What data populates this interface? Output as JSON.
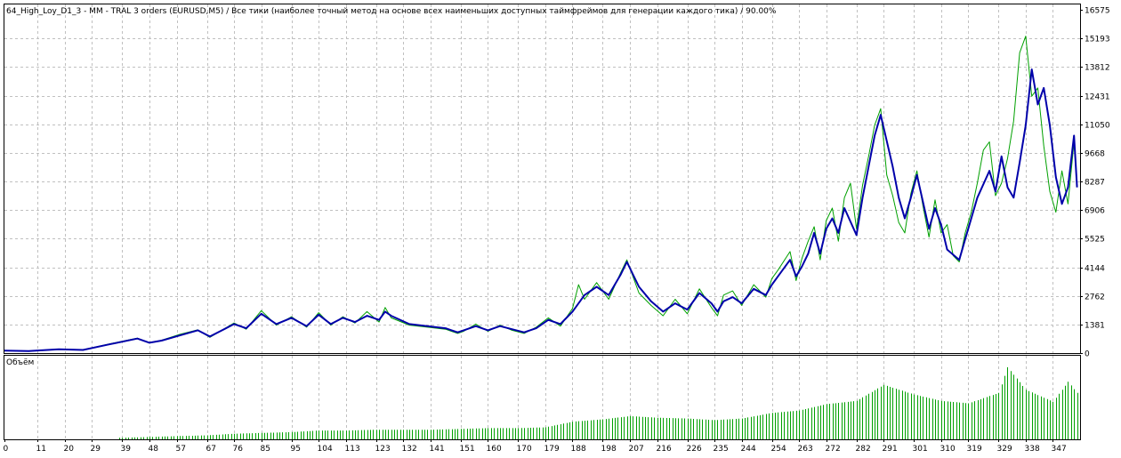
{
  "chart_data": {
    "type": "line",
    "title": "64_High_Loy_D1_3 - MM - TRAL 3 orders (EURUSD,M5) / Все тики (наиболее точный метод на основе всех наименьших доступных таймфреймов для генерации каждого тика) / 90.00%",
    "volume_label": "Объём",
    "ylim": [
      0,
      16575
    ],
    "y_ticks": [
      "16575",
      "15193",
      "13812",
      "12431",
      "11050",
      "9668",
      "8287",
      "6906",
      "5525",
      "4144",
      "2762",
      "1381",
      "0"
    ],
    "x_ticks": [
      "0",
      "11",
      "20",
      "29",
      "39",
      "48",
      "57",
      "67",
      "76",
      "85",
      "95",
      "104",
      "113",
      "123",
      "132",
      "141",
      "151",
      "160",
      "170",
      "179",
      "188",
      "198",
      "207",
      "216",
      "226",
      "235",
      "244",
      "254",
      "263",
      "272",
      "282",
      "291",
      "301",
      "310",
      "319",
      "329",
      "338",
      "347"
    ],
    "xlim": [
      0,
      356
    ],
    "colors": {
      "balance": "#0000aa",
      "equity": "#00a000",
      "volume": "#00a000",
      "grid": "#c0c0c0",
      "frame": "#000000"
    },
    "series": [
      {
        "name": "",
        "x": [
          0,
          8,
          18,
          26,
          34,
          44,
          48,
          52,
          58,
          64,
          68,
          76,
          80,
          85,
          90,
          95,
          100,
          104,
          108,
          112,
          116,
          120,
          124,
          126,
          128,
          134,
          140,
          146,
          150,
          152,
          156,
          160,
          164,
          168,
          172,
          176,
          180,
          184,
          188,
          192,
          196,
          200,
          204,
          206,
          210,
          214,
          218,
          222,
          226,
          230,
          234,
          236,
          238,
          241,
          244,
          248,
          252,
          254,
          256,
          260,
          262,
          264,
          266,
          268,
          270,
          272,
          274,
          276,
          278,
          282,
          284,
          286,
          288,
          290,
          294,
          296,
          298,
          300,
          302,
          306,
          308,
          310,
          312,
          316,
          318,
          320,
          322,
          326,
          328,
          330,
          332,
          334,
          336,
          338,
          340,
          342,
          344,
          346,
          348,
          350,
          352,
          354,
          355
        ],
        "values": [
          120,
          100,
          180,
          150,
          400,
          700,
          500,
          600,
          850,
          1100,
          800,
          1400,
          1200,
          1900,
          1400,
          1700,
          1300,
          1850,
          1400,
          1700,
          1500,
          1800,
          1600,
          2000,
          1800,
          1400,
          1300,
          1200,
          1000,
          1100,
          1300,
          1100,
          1300,
          1150,
          1000,
          1200,
          1600,
          1400,
          2000,
          2800,
          3200,
          2800,
          3800,
          4400,
          3200,
          2500,
          2000,
          2400,
          2100,
          2900,
          2400,
          2000,
          2500,
          2700,
          2400,
          3100,
          2800,
          3300,
          3700,
          4500,
          3700,
          4200,
          4800,
          5800,
          4800,
          6000,
          6500,
          5800,
          7000,
          5700,
          7500,
          9000,
          10500,
          11500,
          9000,
          7500,
          6500,
          7500,
          8600,
          6000,
          7000,
          6200,
          5000,
          4500,
          5500,
          6500,
          7500,
          8800,
          7800,
          9500,
          8000,
          7500,
          9200,
          11000,
          13700,
          12000,
          12800,
          11000,
          8500,
          7200,
          8000,
          10500,
          8000
        ]
      },
      {
        "name": "",
        "x": [
          0,
          8,
          18,
          26,
          34,
          44,
          48,
          52,
          58,
          64,
          68,
          76,
          80,
          85,
          90,
          95,
          100,
          104,
          108,
          112,
          116,
          120,
          124,
          126,
          128,
          134,
          140,
          146,
          150,
          152,
          156,
          160,
          164,
          168,
          172,
          176,
          180,
          184,
          188,
          190,
          192,
          196,
          200,
          204,
          206,
          210,
          214,
          218,
          222,
          226,
          230,
          234,
          236,
          238,
          241,
          244,
          248,
          252,
          254,
          256,
          260,
          262,
          264,
          266,
          268,
          270,
          272,
          274,
          276,
          278,
          280,
          282,
          284,
          286,
          288,
          290,
          292,
          294,
          296,
          298,
          300,
          302,
          304,
          306,
          308,
          310,
          312,
          314,
          316,
          318,
          320,
          322,
          324,
          326,
          328,
          330,
          332,
          334,
          336,
          338,
          340,
          342,
          344,
          346,
          348,
          350,
          352,
          354,
          355
        ],
        "values": [
          120,
          100,
          180,
          150,
          420,
          720,
          480,
          620,
          900,
          1120,
          760,
          1450,
          1150,
          2050,
          1350,
          1750,
          1250,
          1950,
          1350,
          1750,
          1450,
          2000,
          1500,
          2200,
          1700,
          1350,
          1250,
          1150,
          950,
          1050,
          1400,
          1050,
          1350,
          1100,
          950,
          1250,
          1700,
          1300,
          2150,
          3300,
          2600,
          3400,
          2600,
          3900,
          4500,
          2900,
          2300,
          1800,
          2600,
          1900,
          3100,
          2200,
          1800,
          2800,
          3000,
          2300,
          3300,
          2700,
          3600,
          4000,
          4900,
          3500,
          4600,
          5400,
          6100,
          4500,
          6400,
          7000,
          5400,
          7500,
          8200,
          6000,
          8100,
          9500,
          11000,
          11800,
          8600,
          7600,
          6300,
          5800,
          7700,
          8800,
          7100,
          5600,
          7400,
          5800,
          6200,
          4700,
          4400,
          5800,
          6800,
          8200,
          9800,
          10200,
          7600,
          8200,
          9400,
          11200,
          14500,
          15300,
          12400,
          12800,
          10000,
          7800,
          6800,
          8800,
          7200,
          10200,
          8100
        ]
      }
    ],
    "volume": {
      "x": [
        0,
        39,
        48,
        57,
        67,
        76,
        85,
        95,
        104,
        113,
        123,
        132,
        141,
        151,
        160,
        170,
        179,
        188,
        198,
        207,
        216,
        226,
        235,
        244,
        254,
        263,
        272,
        282,
        291,
        301,
        310,
        319,
        329,
        332,
        338,
        347,
        352,
        355
      ],
      "values": [
        0,
        2,
        3,
        4,
        5,
        7,
        8,
        9,
        11,
        11,
        12,
        12,
        12,
        13,
        14,
        14,
        15,
        22,
        25,
        29,
        27,
        26,
        24,
        26,
        33,
        36,
        44,
        48,
        68,
        56,
        48,
        45,
        58,
        90,
        62,
        47,
        72,
        58
      ]
    }
  }
}
